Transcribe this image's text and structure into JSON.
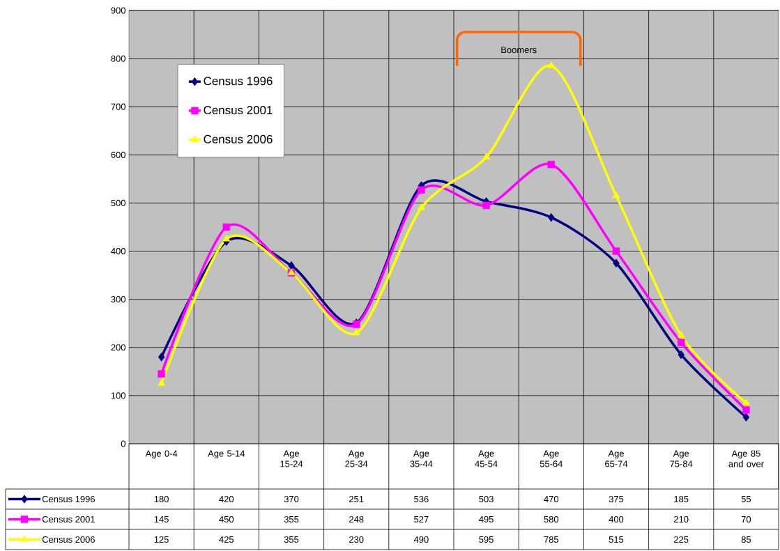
{
  "chart_data": {
    "type": "line",
    "categories": [
      "Age 0-4",
      "Age 5-14",
      "Age 15-24",
      "Age 25-34",
      "Age 35-44",
      "Age 45-54",
      "Age 55-64",
      "Age 65-74",
      "Age 75-84",
      "Age 85 and over"
    ],
    "series": [
      {
        "name": "Census 1996",
        "color": "#000080",
        "marker": "diamond",
        "values": [
          180,
          420,
          370,
          251,
          536,
          503,
          470,
          375,
          185,
          55
        ]
      },
      {
        "name": "Census 2001",
        "color": "#ff00ff",
        "marker": "square",
        "values": [
          145,
          450,
          355,
          248,
          527,
          495,
          580,
          400,
          210,
          70
        ]
      },
      {
        "name": "Census 2006",
        "color": "#ffff00",
        "marker": "triangle",
        "values": [
          125,
          425,
          355,
          230,
          490,
          595,
          785,
          515,
          225,
          85
        ]
      }
    ],
    "ylim": [
      0,
      900
    ],
    "yticks": [
      0,
      100,
      200,
      300,
      400,
      500,
      600,
      700,
      800,
      900
    ],
    "grid": true,
    "legend": "top left",
    "data_labels": true,
    "annotations": [
      "Boomers"
    ]
  }
}
